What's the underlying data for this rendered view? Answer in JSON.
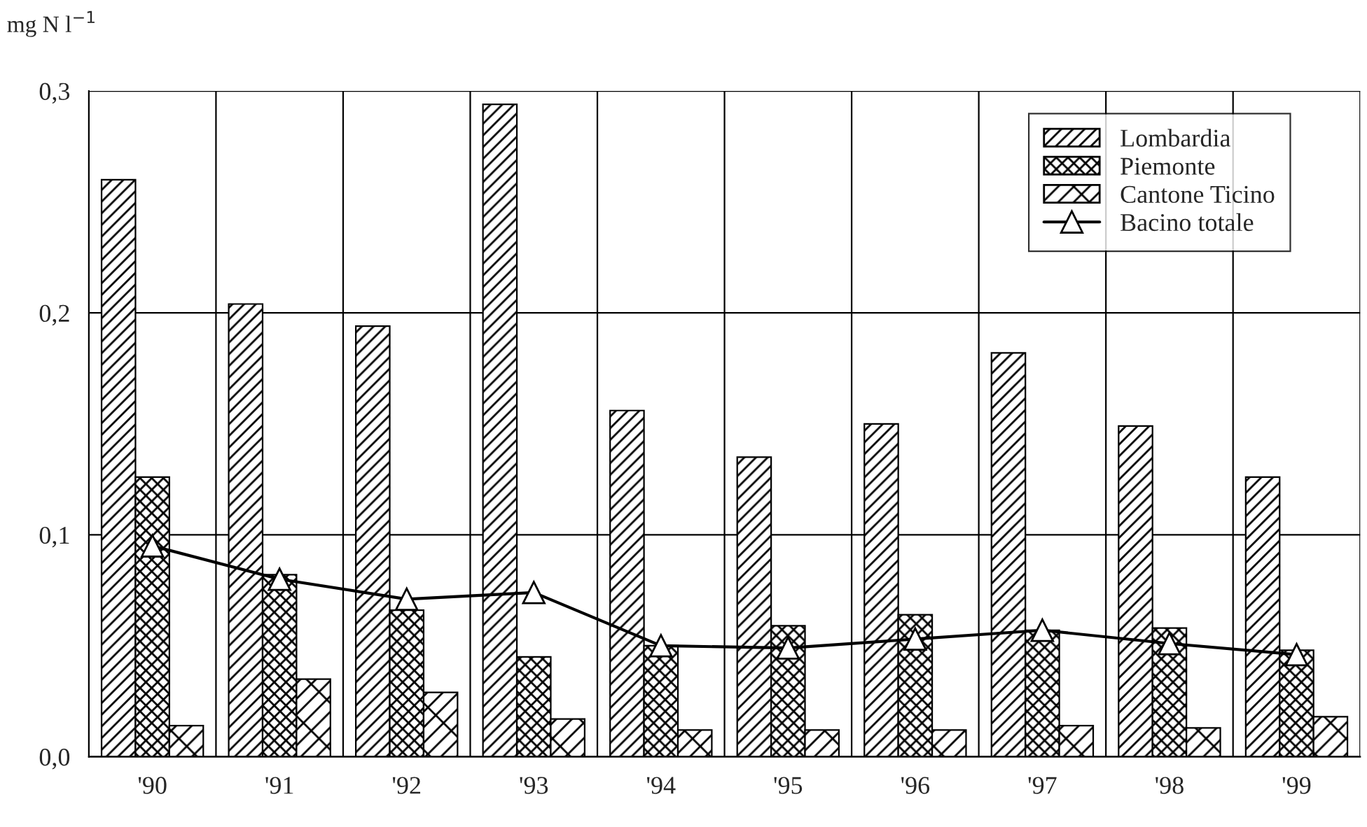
{
  "chart_data": {
    "type": "bar",
    "ylabel": "mg N l$^{−1}$",
    "categories": [
      "'90",
      "'91",
      "'92",
      "'93",
      "'94",
      "'95",
      "'96",
      "'97",
      "'98",
      "'99"
    ],
    "series": [
      {
        "name": "Lombardia",
        "color": "#000000",
        "values": [
          0.26,
          0.204,
          0.194,
          0.294,
          0.156,
          0.135,
          0.15,
          0.182,
          0.149,
          0.126
        ]
      },
      {
        "name": "Piemonte",
        "color": "#000000",
        "values": [
          0.126,
          0.082,
          0.066,
          0.045,
          0.05,
          0.059,
          0.064,
          0.057,
          0.058,
          0.048
        ]
      },
      {
        "name": "Cantone Ticino",
        "color": "#000000",
        "values": [
          0.014,
          0.035,
          0.029,
          0.017,
          0.012,
          0.012,
          0.012,
          0.014,
          0.013,
          0.018
        ]
      },
      {
        "name": "Bacino totale",
        "type": "line",
        "color": "#000000",
        "marker": "triangle",
        "values": [
          0.095,
          0.08,
          0.071,
          0.074,
          0.05,
          0.049,
          0.053,
          0.057,
          0.051,
          0.046
        ]
      }
    ],
    "ylim": [
      0,
      0.3
    ],
    "yticks": [
      {
        "value": 0,
        "label": "0,0"
      },
      {
        "value": 0.1,
        "label": "0,1"
      },
      {
        "value": 0.2,
        "label": "0,2"
      },
      {
        "value": 0.3,
        "label": "0,3"
      }
    ],
    "grid": true,
    "legend": "top right"
  }
}
